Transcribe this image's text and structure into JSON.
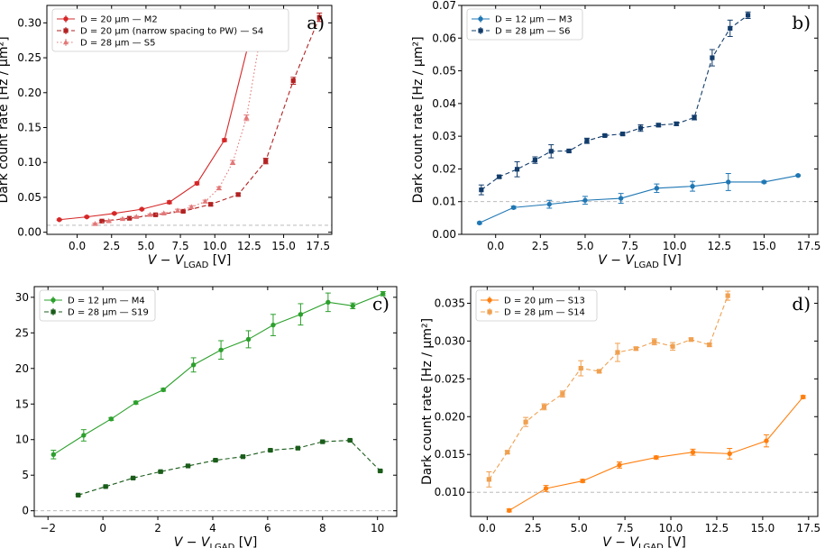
{
  "chart_data": [
    {
      "id": "a",
      "type": "line",
      "panel_label": "a)",
      "xlabel_main": "V − V",
      "xlabel_sub": "LGAD",
      "xlabel_unit": " [V]",
      "ylabel": "Dark count rate [Hz / µm²]",
      "xlim": [
        -2.2,
        18.5
      ],
      "ylim": [
        -0.003,
        0.325
      ],
      "xticks": [
        "0.0",
        "2.5",
        "5.0",
        "7.5",
        "10.0",
        "12.5",
        "15.0",
        "17.5"
      ],
      "xtick_values": [
        0,
        2.5,
        5,
        7.5,
        10,
        12.5,
        15,
        17.5
      ],
      "yticks": [
        "0.00",
        "0.05",
        "0.10",
        "0.15",
        "0.20",
        "0.25",
        "0.30"
      ],
      "ytick_values": [
        0,
        0.05,
        0.1,
        0.15,
        0.2,
        0.25,
        0.3
      ],
      "reference_line": 0.01,
      "legend_position": "top-left",
      "series": [
        {
          "name": "D = 20 µm — M2",
          "color": "#d62728",
          "dash": "solid",
          "marker": "circle",
          "x": [
            -1.3,
            0.7,
            2.7,
            4.7,
            6.7,
            8.7,
            10.7,
            12.7
          ],
          "y": [
            0.018,
            0.022,
            0.027,
            0.033,
            0.043,
            0.07,
            0.132,
            0.29
          ],
          "err": [
            0.001,
            0.001,
            0.001,
            0.001,
            0.002,
            0.002,
            0.002,
            0.003
          ]
        },
        {
          "name": "D = 20 µm (narrow spacing to PW) — S4",
          "color": "#b22222",
          "dash": "dashed",
          "marker": "square",
          "x": [
            1.8,
            3.8,
            5.7,
            7.7,
            9.7,
            11.7,
            13.7,
            15.7,
            17.6
          ],
          "y": [
            0.016,
            0.02,
            0.025,
            0.03,
            0.04,
            0.054,
            0.102,
            0.217,
            0.308
          ],
          "err": [
            0.001,
            0.001,
            0.001,
            0.001,
            0.002,
            0.002,
            0.004,
            0.005,
            0.006
          ]
        },
        {
          "name": "D = 28 µm — S5",
          "color": "#e37777",
          "dash": "dotted",
          "marker": "triangle",
          "x": [
            1.3,
            2.3,
            3.3,
            4.3,
            5.3,
            6.3,
            7.3,
            8.3,
            9.3,
            10.3,
            11.3,
            12.3,
            13.3
          ],
          "y": [
            0.012,
            0.016,
            0.019,
            0.022,
            0.025,
            0.027,
            0.031,
            0.036,
            0.044,
            0.063,
            0.1,
            0.164,
            0.28
          ],
          "err": [
            0.001,
            0.001,
            0.001,
            0.001,
            0.001,
            0.001,
            0.002,
            0.002,
            0.002,
            0.002,
            0.003,
            0.004,
            0.003
          ]
        }
      ]
    },
    {
      "id": "b",
      "type": "line",
      "panel_label": "b)",
      "xlabel_main": "V − V",
      "xlabel_sub": "LGAD",
      "xlabel_unit": " [V]",
      "ylabel": "Dark count rate [Hz / µm²]",
      "xlim": [
        -1.9,
        18.0
      ],
      "ylim": [
        0.0,
        0.07
      ],
      "xticks": [
        "0.0",
        "2.5",
        "5.0",
        "7.5",
        "10.0",
        "12.5",
        "15.0",
        "17.5"
      ],
      "xtick_values": [
        0,
        2.5,
        5,
        7.5,
        10,
        12.5,
        15,
        17.5
      ],
      "yticks": [
        "0.00",
        "0.01",
        "0.02",
        "0.03",
        "0.04",
        "0.05",
        "0.06",
        "0.07"
      ],
      "ytick_values": [
        0,
        0.01,
        0.02,
        0.03,
        0.04,
        0.05,
        0.06,
        0.07
      ],
      "reference_line": 0.01,
      "legend_position": "top-left",
      "series": [
        {
          "name": "D = 12 µm — M3",
          "color": "#1f77b4",
          "dash": "solid",
          "marker": "circle",
          "x": [
            -0.9,
            1.0,
            3.0,
            5.0,
            7.0,
            9.0,
            11.0,
            13.0,
            15.0,
            16.9
          ],
          "y": [
            0.0035,
            0.0082,
            0.0092,
            0.0104,
            0.011,
            0.0141,
            0.0147,
            0.016,
            0.016,
            0.018
          ],
          "err": [
            0.0003,
            0.0004,
            0.0012,
            0.0012,
            0.0015,
            0.0013,
            0.0015,
            0.0026,
            0.0003,
            0.0002
          ]
        },
        {
          "name": "D = 28 µm — S6",
          "color": "#123c6b",
          "dash": "dashed",
          "marker": "square",
          "x": [
            -0.8,
            0.2,
            1.2,
            2.2,
            3.1,
            4.1,
            5.1,
            6.1,
            7.1,
            8.1,
            9.1,
            10.1,
            11.1,
            12.1,
            13.1,
            14.1
          ],
          "y": [
            0.0136,
            0.0176,
            0.0199,
            0.0227,
            0.0254,
            0.0255,
            0.0286,
            0.0302,
            0.0307,
            0.0325,
            0.0334,
            0.0338,
            0.0357,
            0.054,
            0.063,
            0.067
          ],
          "err": [
            0.0015,
            0.0004,
            0.0023,
            0.001,
            0.002,
            0.0004,
            0.0008,
            0.0003,
            0.0004,
            0.001,
            0.0005,
            0.0005,
            0.0007,
            0.0025,
            0.0025,
            0.001
          ]
        }
      ]
    },
    {
      "id": "c",
      "type": "line",
      "panel_label": "c)",
      "xlabel_main": "V − V",
      "xlabel_sub": "LGAD",
      "xlabel_unit": " [V]",
      "ylabel": "Dark count rate [Hz / µm²]",
      "xlim": [
        -2.5,
        10.7
      ],
      "ylim": [
        -0.8,
        31.5
      ],
      "xticks": [
        "−2",
        "0",
        "2",
        "4",
        "6",
        "8",
        "10"
      ],
      "xtick_values": [
        -2,
        0,
        2,
        4,
        6,
        8,
        10
      ],
      "yticks": [
        "0",
        "5",
        "10",
        "15",
        "20",
        "25",
        "30"
      ],
      "ytick_values": [
        0,
        5,
        10,
        15,
        20,
        25,
        30
      ],
      "reference_line": 0,
      "legend_position": "top-left",
      "series": [
        {
          "name": "D = 12 µm — M4",
          "color": "#2ca02c",
          "dash": "solid",
          "marker": "circle",
          "x": [
            -1.8,
            -0.7,
            0.3,
            1.2,
            2.2,
            3.3,
            4.3,
            5.3,
            6.2,
            7.2,
            8.2,
            9.1,
            10.2
          ],
          "y": [
            7.9,
            10.6,
            12.9,
            15.2,
            17.0,
            20.5,
            22.6,
            24.1,
            26.1,
            27.6,
            29.3,
            28.8,
            30.5
          ],
          "err": [
            0.6,
            0.8,
            0.2,
            0.2,
            0.2,
            1.0,
            1.3,
            1.2,
            1.5,
            1.5,
            1.3,
            0.4,
            0.3
          ]
        },
        {
          "name": "D = 28 µm — S19",
          "color": "#1a5c1a",
          "dash": "dashed",
          "marker": "square",
          "x": [
            -0.9,
            0.1,
            1.1,
            2.1,
            3.1,
            4.1,
            5.1,
            6.1,
            7.1,
            8.0,
            9.0,
            10.1
          ],
          "y": [
            2.2,
            3.4,
            4.6,
            5.5,
            6.3,
            7.1,
            7.6,
            8.5,
            8.8,
            9.7,
            9.9,
            5.6
          ],
          "err": [
            0.1,
            0.1,
            0.1,
            0.1,
            0.1,
            0.1,
            0.1,
            0.1,
            0.1,
            0.1,
            0.1,
            0.1
          ]
        }
      ]
    },
    {
      "id": "d",
      "type": "line",
      "panel_label": "d)",
      "xlabel_main": "V − V",
      "xlabel_sub": "LGAD",
      "xlabel_unit": " [V]",
      "ylabel": "Dark count rate [Hz / µm²]",
      "xlim": [
        -0.9,
        18.0
      ],
      "ylim": [
        0.0068,
        0.0372
      ],
      "xticks": [
        "0.0",
        "2.5",
        "5.0",
        "7.5",
        "10.0",
        "12.5",
        "15.0",
        "17.5"
      ],
      "xtick_values": [
        0,
        2.5,
        5,
        7.5,
        10,
        12.5,
        15,
        17.5
      ],
      "yticks": [
        "0.010",
        "0.015",
        "0.020",
        "0.025",
        "0.030",
        "0.035"
      ],
      "ytick_values": [
        0.01,
        0.015,
        0.02,
        0.025,
        0.03,
        0.035
      ],
      "reference_line": 0.01,
      "legend_position": "top-left",
      "series": [
        {
          "name": "D = 20 µm — S13",
          "color": "#ff7f0e",
          "dash": "solid",
          "marker": "circle",
          "x": [
            1.2,
            3.2,
            5.2,
            7.2,
            9.2,
            11.2,
            13.2,
            15.2,
            17.2
          ],
          "y": [
            0.0076,
            0.0105,
            0.0115,
            0.0136,
            0.0146,
            0.0153,
            0.0151,
            0.0168,
            0.0226
          ],
          "err": [
            0.0002,
            0.0004,
            0.0002,
            0.0004,
            0.0002,
            0.0004,
            0.0007,
            0.0008,
            0.0002
          ]
        },
        {
          "name": "D = 28 µm — S14",
          "color": "#f0a050",
          "dash": "dashed",
          "marker": "square",
          "x": [
            0.1,
            1.1,
            2.1,
            3.1,
            4.1,
            5.1,
            6.1,
            7.1,
            8.1,
            9.1,
            10.1,
            11.1,
            12.1,
            13.1
          ],
          "y": [
            0.0117,
            0.0153,
            0.0193,
            0.0213,
            0.023,
            0.0264,
            0.026,
            0.0285,
            0.029,
            0.0299,
            0.0293,
            0.0302,
            0.0295,
            0.036
          ],
          "err": [
            0.001,
            0.0002,
            0.0006,
            0.0004,
            0.0004,
            0.001,
            0.0002,
            0.0012,
            0.0002,
            0.0004,
            0.0005,
            0.0002,
            0.0002,
            0.0006
          ]
        }
      ]
    }
  ]
}
